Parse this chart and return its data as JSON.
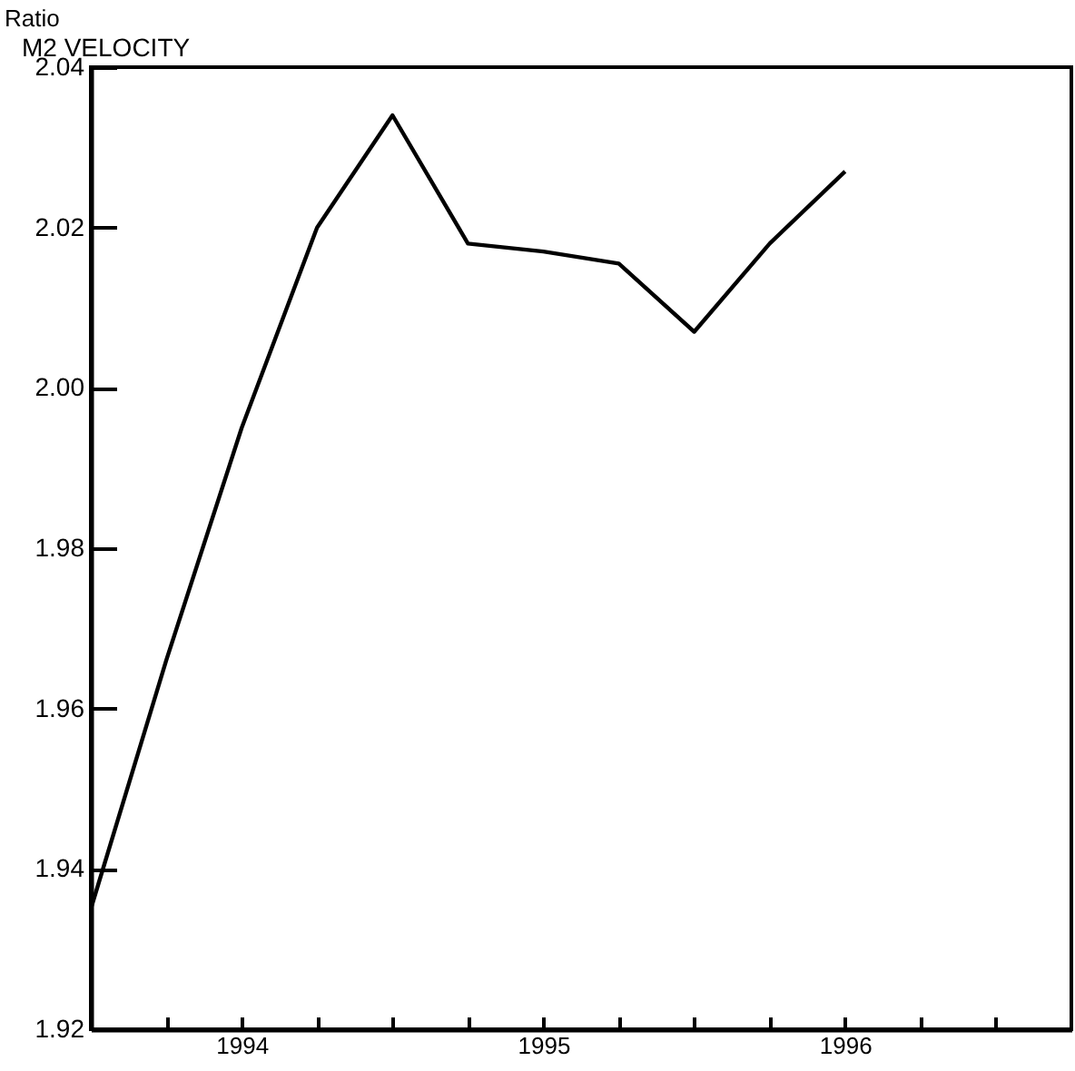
{
  "chart_data": {
    "type": "line",
    "title": "M2 VELOCITY",
    "ylabel": "Ratio",
    "x": [
      1993.5,
      1993.75,
      1994,
      1994.25,
      1994.5,
      1994.75,
      1995,
      1995.25,
      1995.5,
      1995.75,
      1996
    ],
    "series": [
      {
        "color": "#000000",
        "values": [
          1.935,
          1.966,
          1.995,
          2.02,
          2.034,
          2.018,
          2.017,
          2.0155,
          2.007,
          2.018,
          2.027
        ]
      }
    ],
    "xlim": [
      1993.5,
      1996.75
    ],
    "xticks": [
      {
        "value": 1993.75,
        "label": null
      },
      {
        "value": 1994,
        "label": "1994"
      },
      {
        "value": 1994.25,
        "label": null
      },
      {
        "value": 1994.5,
        "label": null
      },
      {
        "value": 1994.75,
        "label": null
      },
      {
        "value": 1995,
        "label": "1995"
      },
      {
        "value": 1995.25,
        "label": null
      },
      {
        "value": 1995.5,
        "label": null
      },
      {
        "value": 1995.75,
        "label": null
      },
      {
        "value": 1996,
        "label": "1996"
      },
      {
        "value": 1996.25,
        "label": null
      },
      {
        "value": 1996.5,
        "label": null
      }
    ],
    "ylim": [
      1.92,
      2.04
    ],
    "yticks": [
      1.92,
      1.94,
      1.96,
      1.98,
      {
        "value": 2.0,
        "label": "2.00"
      },
      2.02,
      2.04
    ]
  }
}
